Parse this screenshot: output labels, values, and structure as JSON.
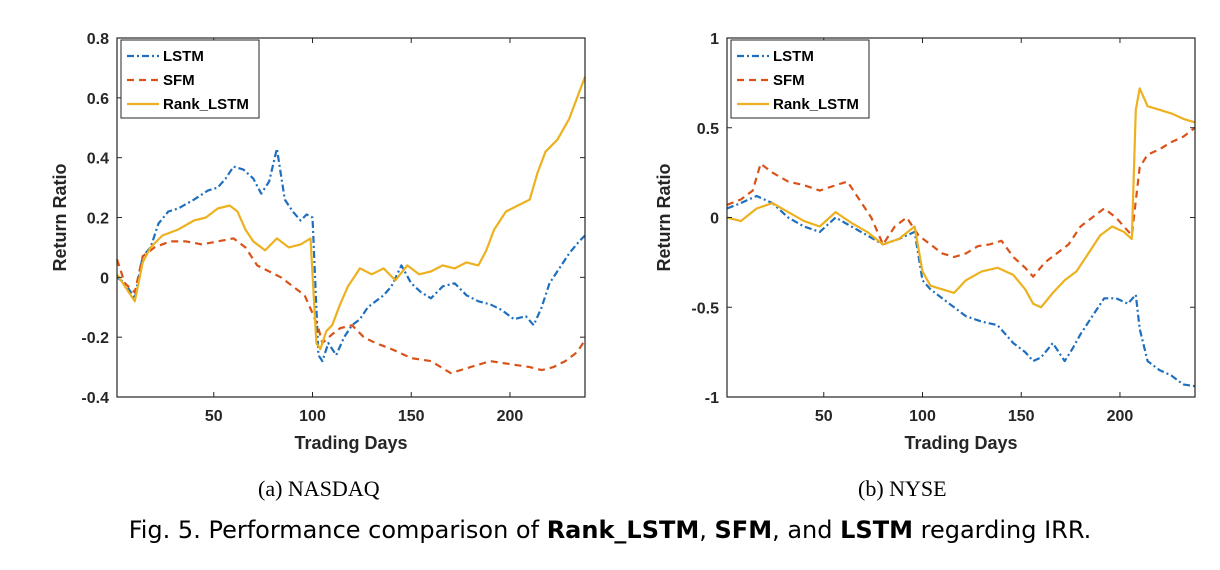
{
  "chart_data": [
    {
      "type": "line",
      "xlabel": "Trading Days",
      "ylabel": "Return Ratio",
      "xlim": [
        1,
        238
      ],
      "ylim": [
        -0.4,
        0.8
      ],
      "xticks": [
        50,
        100,
        150,
        200
      ],
      "xtick_labels": [
        "50",
        "100",
        "150",
        "200"
      ],
      "yticks": [
        -0.4,
        -0.2,
        0,
        0.2,
        0.4,
        0.6,
        0.8
      ],
      "ytick_labels": [
        "-0.4",
        "-0.2",
        "0",
        "0.2",
        "0.4",
        "0.6",
        "0.8"
      ],
      "grid": false,
      "legend_position": "top-left",
      "series": [
        {
          "name": "LSTM",
          "color": "#1f6fbf",
          "style": "dash-dot",
          "x": [
            1,
            5,
            10,
            14,
            18,
            22,
            27,
            32,
            40,
            47,
            52,
            56,
            60,
            65,
            70,
            74,
            78,
            82,
            86,
            90,
            94,
            97,
            100,
            103,
            105,
            108,
            112,
            116,
            120,
            124,
            128,
            132,
            136,
            140,
            145,
            150,
            155,
            160,
            166,
            172,
            178,
            184,
            190,
            196,
            202,
            208,
            212,
            216,
            220,
            225,
            230,
            235,
            238
          ],
          "y": [
            0.0,
            -0.02,
            -0.07,
            0.07,
            0.1,
            0.18,
            0.22,
            0.23,
            0.26,
            0.29,
            0.3,
            0.33,
            0.37,
            0.36,
            0.33,
            0.28,
            0.32,
            0.43,
            0.26,
            0.22,
            0.19,
            0.21,
            0.2,
            -0.26,
            -0.28,
            -0.22,
            -0.26,
            -0.2,
            -0.16,
            -0.14,
            -0.1,
            -0.08,
            -0.06,
            -0.03,
            0.04,
            -0.02,
            -0.05,
            -0.07,
            -0.03,
            -0.02,
            -0.06,
            -0.08,
            -0.09,
            -0.11,
            -0.14,
            -0.13,
            -0.16,
            -0.1,
            -0.02,
            0.03,
            0.08,
            0.12,
            0.14
          ]
        },
        {
          "name": "SFM",
          "color": "#d95319",
          "style": "dashed",
          "x": [
            1,
            5,
            10,
            14,
            20,
            28,
            36,
            44,
            52,
            60,
            66,
            72,
            78,
            84,
            90,
            96,
            100,
            103,
            105,
            110,
            114,
            120,
            126,
            132,
            140,
            150,
            160,
            170,
            180,
            190,
            200,
            210,
            216,
            222,
            228,
            234,
            238
          ],
          "y": [
            0.06,
            -0.02,
            -0.05,
            0.07,
            0.1,
            0.12,
            0.12,
            0.11,
            0.12,
            0.13,
            0.1,
            0.04,
            0.02,
            0.0,
            -0.03,
            -0.06,
            -0.12,
            -0.17,
            -0.22,
            -0.19,
            -0.17,
            -0.16,
            -0.2,
            -0.22,
            -0.24,
            -0.27,
            -0.28,
            -0.32,
            -0.3,
            -0.28,
            -0.29,
            -0.3,
            -0.31,
            -0.3,
            -0.28,
            -0.25,
            -0.21
          ]
        },
        {
          "name": "Rank_LSTM",
          "color": "#edb120",
          "style": "solid",
          "x": [
            1,
            5,
            10,
            14,
            18,
            24,
            32,
            40,
            46,
            52,
            58,
            62,
            66,
            70,
            76,
            82,
            88,
            94,
            99,
            102,
            104,
            107,
            110,
            114,
            118,
            124,
            130,
            136,
            142,
            148,
            154,
            160,
            166,
            172,
            178,
            184,
            188,
            192,
            198,
            204,
            210,
            214,
            218,
            224,
            230,
            234,
            238
          ],
          "y": [
            0.01,
            -0.03,
            -0.08,
            0.05,
            0.1,
            0.14,
            0.16,
            0.19,
            0.2,
            0.23,
            0.24,
            0.22,
            0.16,
            0.12,
            0.09,
            0.13,
            0.1,
            0.11,
            0.13,
            -0.22,
            -0.24,
            -0.18,
            -0.16,
            -0.09,
            -0.03,
            0.03,
            0.01,
            0.03,
            -0.01,
            0.04,
            0.01,
            0.02,
            0.04,
            0.03,
            0.05,
            0.04,
            0.09,
            0.16,
            0.22,
            0.24,
            0.26,
            0.35,
            0.42,
            0.46,
            0.53,
            0.6,
            0.67
          ]
        }
      ]
    },
    {
      "type": "line",
      "xlabel": "Trading Days",
      "ylabel": "Return Ratio",
      "xlim": [
        1,
        238
      ],
      "ylim": [
        -1,
        1
      ],
      "xticks": [
        50,
        100,
        150,
        200
      ],
      "xtick_labels": [
        "50",
        "100",
        "150",
        "200"
      ],
      "yticks": [
        -1,
        -0.5,
        0,
        0.5,
        1
      ],
      "ytick_labels": [
        "-1",
        "-0.5",
        "0",
        "0.5",
        "1"
      ],
      "grid": false,
      "legend_position": "top-left",
      "series": [
        {
          "name": "LSTM",
          "color": "#1f6fbf",
          "style": "dash-dot",
          "x": [
            1,
            8,
            16,
            24,
            32,
            40,
            48,
            56,
            64,
            72,
            80,
            88,
            96,
            100,
            104,
            110,
            116,
            122,
            130,
            138,
            146,
            152,
            156,
            160,
            166,
            172,
            176,
            180,
            186,
            192,
            198,
            204,
            208,
            210,
            214,
            220,
            226,
            232,
            238
          ],
          "y": [
            0.05,
            0.08,
            0.12,
            0.08,
            0.0,
            -0.05,
            -0.08,
            0.0,
            -0.05,
            -0.1,
            -0.15,
            -0.12,
            -0.08,
            -0.35,
            -0.4,
            -0.45,
            -0.5,
            -0.55,
            -0.58,
            -0.6,
            -0.7,
            -0.75,
            -0.8,
            -0.78,
            -0.7,
            -0.8,
            -0.73,
            -0.65,
            -0.55,
            -0.45,
            -0.45,
            -0.48,
            -0.43,
            -0.62,
            -0.8,
            -0.85,
            -0.88,
            -0.93,
            -0.94
          ]
        },
        {
          "name": "SFM",
          "color": "#d95319",
          "style": "dashed",
          "x": [
            1,
            8,
            14,
            18,
            24,
            32,
            40,
            48,
            56,
            62,
            68,
            74,
            80,
            86,
            92,
            98,
            104,
            110,
            116,
            122,
            128,
            134,
            140,
            146,
            152,
            156,
            162,
            168,
            174,
            180,
            186,
            192,
            198,
            202,
            206,
            210,
            214,
            220,
            226,
            232,
            238
          ],
          "y": [
            0.07,
            0.1,
            0.15,
            0.3,
            0.25,
            0.2,
            0.18,
            0.15,
            0.18,
            0.2,
            0.1,
            0.0,
            -0.15,
            -0.05,
            0.0,
            -0.1,
            -0.15,
            -0.2,
            -0.22,
            -0.2,
            -0.16,
            -0.15,
            -0.13,
            -0.22,
            -0.28,
            -0.33,
            -0.25,
            -0.2,
            -0.15,
            -0.05,
            0.0,
            0.05,
            0.0,
            -0.05,
            -0.1,
            0.28,
            0.35,
            0.38,
            0.42,
            0.45,
            0.5
          ]
        },
        {
          "name": "Rank_LSTM",
          "color": "#edb120",
          "style": "solid",
          "x": [
            1,
            8,
            16,
            24,
            32,
            40,
            48,
            56,
            64,
            72,
            80,
            88,
            96,
            100,
            104,
            110,
            116,
            122,
            130,
            138,
            146,
            152,
            156,
            160,
            166,
            172,
            178,
            184,
            190,
            196,
            202,
            206,
            208,
            210,
            214,
            220,
            226,
            232,
            238
          ],
          "y": [
            0.0,
            -0.02,
            0.05,
            0.08,
            0.03,
            -0.02,
            -0.05,
            0.03,
            -0.03,
            -0.08,
            -0.15,
            -0.12,
            -0.05,
            -0.3,
            -0.38,
            -0.4,
            -0.42,
            -0.35,
            -0.3,
            -0.28,
            -0.32,
            -0.4,
            -0.48,
            -0.5,
            -0.42,
            -0.35,
            -0.3,
            -0.2,
            -0.1,
            -0.05,
            -0.08,
            -0.12,
            0.6,
            0.72,
            0.62,
            0.6,
            0.58,
            0.55,
            0.53
          ]
        }
      ]
    }
  ],
  "subcaptions": [
    "(a)  NASDAQ",
    "(b)  NYSE"
  ],
  "caption": {
    "prefix": "Fig. 5.  Performance comparison of ",
    "m1": "Rank_LSTM",
    "sep1": ", ",
    "m2": "SFM",
    "sep2": ", and ",
    "m3": "LSTM",
    "suffix": " regarding IRR."
  }
}
